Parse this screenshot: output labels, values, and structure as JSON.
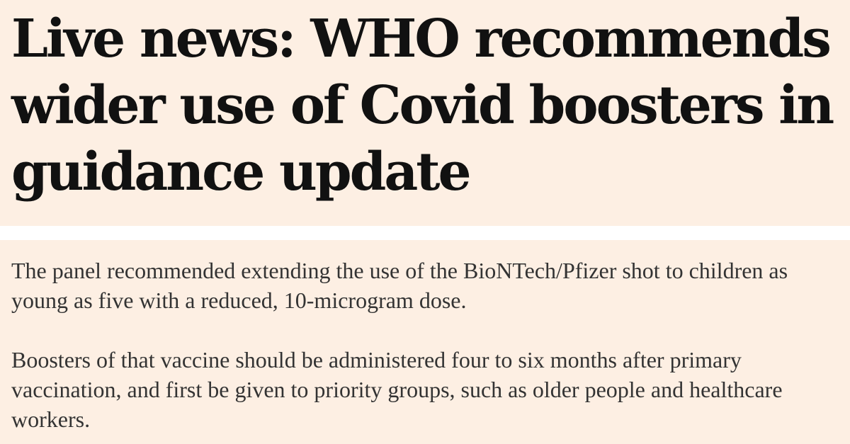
{
  "article": {
    "headline_lines": [
      "Live news: WHO recommends",
      "wider use of Covid boosters in",
      "guidance update"
    ],
    "paragraphs": [
      {
        "lines": [
          "The panel recommended extending the use of the BioNTech/Pfizer shot to children as",
          "young as five with a reduced, 10-microgram dose."
        ]
      },
      {
        "lines": [
          "Boosters of that vaccine should be administered four to six months after primary",
          "vaccination, and first be given to priority groups, such as older people and healthcare",
          "workers."
        ]
      }
    ]
  },
  "colors": {
    "panel_background": "#fdefe3",
    "divider": "#ffffff",
    "headline_text": "#111111",
    "body_text": "#333333"
  }
}
